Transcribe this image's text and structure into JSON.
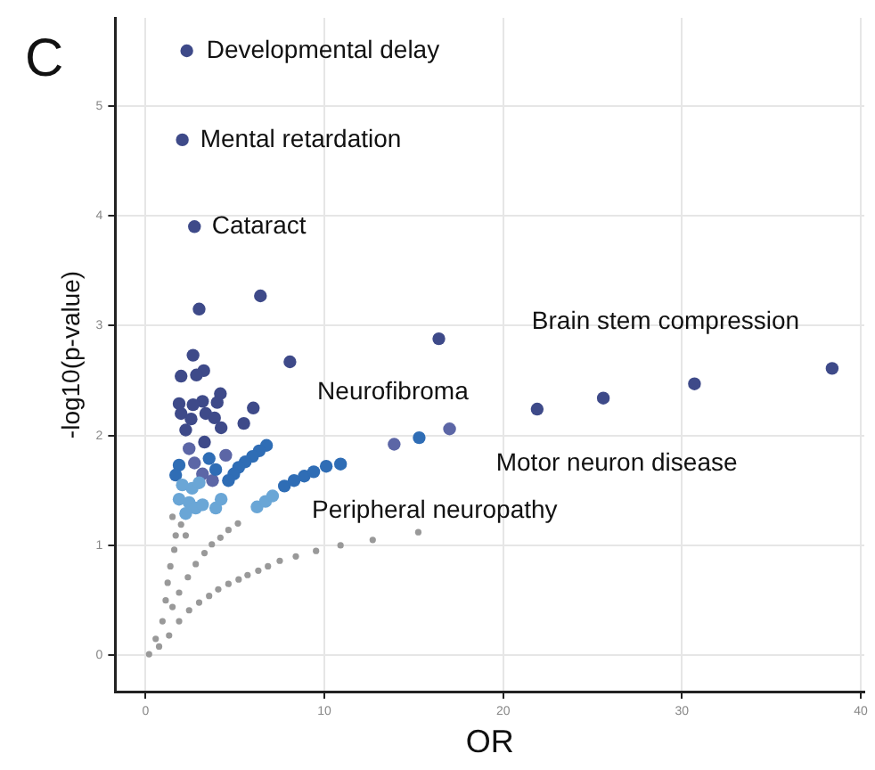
{
  "chart_data": {
    "type": "scatter",
    "xlabel": "OR",
    "ylabel": "-log10(p-value)",
    "annotations": [
      "C",
      "Developmental delay",
      "Mental retardation",
      "Cataract",
      "Brain stem compression",
      "Neurofibroma",
      "Motor neuron disease",
      "Peripheral neuropathy"
    ],
    "xlim": [
      -1.7,
      40.2
    ],
    "ylim": [
      -0.33,
      5.8
    ],
    "xticks": [
      0,
      10,
      20,
      30,
      40
    ],
    "yticks": [
      0,
      1,
      2,
      3,
      4,
      5
    ],
    "grid": true,
    "legend": false,
    "marker": "circle",
    "series": [
      {
        "color": "#999999",
        "x": [
          0.19,
          0.75,
          1.31,
          1.87,
          2.43,
          2.99,
          3.55,
          4.06,
          4.63,
          5.2,
          5.7,
          6.3,
          6.84,
          7.5,
          8.4,
          9.53,
          10.9,
          12.7,
          15.25,
          1.5,
          1.87,
          2.36,
          2.8,
          3.29,
          3.7,
          4.18,
          4.63,
          5.16,
          0.56,
          0.94,
          1.12,
          1.23,
          1.38,
          1.6,
          1.68,
          2.24,
          1.98,
          1.5
        ],
        "values": [
          0.01,
          0.08,
          0.18,
          0.31,
          0.41,
          0.48,
          0.54,
          0.6,
          0.65,
          0.69,
          0.73,
          0.77,
          0.81,
          0.86,
          0.9,
          0.95,
          1.0,
          1.05,
          1.12,
          0.44,
          0.57,
          0.71,
          0.83,
          0.93,
          1.01,
          1.07,
          1.14,
          1.2,
          0.15,
          0.31,
          0.5,
          0.66,
          0.81,
          0.96,
          1.09,
          1.09,
          1.19,
          1.26
        ]
      },
      {
        "color": "#6aa6d6",
        "x": [
          1.87,
          2.43,
          2.8,
          3.18,
          2.6,
          2.99,
          2.05,
          3.92,
          4.22,
          2.24,
          6.23,
          6.7,
          7.1
        ],
        "values": [
          1.42,
          1.39,
          1.34,
          1.37,
          1.52,
          1.57,
          1.55,
          1.34,
          1.42,
          1.29,
          1.35,
          1.4,
          1.45
        ]
      },
      {
        "color": "#2f6db5",
        "x": [
          6.76,
          6.35,
          5.98,
          5.57,
          5.2,
          4.93,
          4.63,
          7.76,
          8.3,
          8.87,
          9.4,
          10.1,
          10.9,
          15.3,
          3.55,
          1.87,
          3.92,
          1.68
        ],
        "values": [
          1.91,
          1.86,
          1.81,
          1.76,
          1.71,
          1.65,
          1.59,
          1.54,
          1.59,
          1.63,
          1.67,
          1.72,
          1.74,
          1.98,
          1.79,
          1.73,
          1.69,
          1.64
        ]
      },
      {
        "color": "#5c66a6",
        "x": [
          2.43,
          4.48,
          2.73,
          3.18,
          3.74,
          13.9,
          17.0
        ],
        "values": [
          1.88,
          1.82,
          1.75,
          1.65,
          1.59,
          1.92,
          2.06
        ]
      },
      {
        "color": "#3e4a89",
        "x": [
          2.3,
          2.05,
          2.73,
          2.99,
          6.42,
          2.65,
          8.07,
          1.98,
          2.62,
          3.25,
          2.84,
          4.18,
          3.18,
          1.87,
          2.65,
          4.0,
          6.02,
          1.98,
          3.36,
          2.54,
          3.85,
          5.49,
          4.22,
          2.24,
          3.29,
          16.4,
          21.9,
          25.6,
          30.7,
          38.4
        ],
        "values": [
          5.5,
          4.69,
          3.9,
          3.15,
          3.27,
          2.73,
          2.67,
          2.54,
          null,
          2.59,
          2.55,
          2.38,
          2.31,
          2.29,
          2.28,
          2.3,
          2.25,
          2.2,
          2.2,
          2.15,
          2.16,
          2.11,
          2.07,
          2.05,
          1.94,
          2.88,
          2.24,
          2.34,
          2.47,
          2.61
        ]
      }
    ]
  }
}
